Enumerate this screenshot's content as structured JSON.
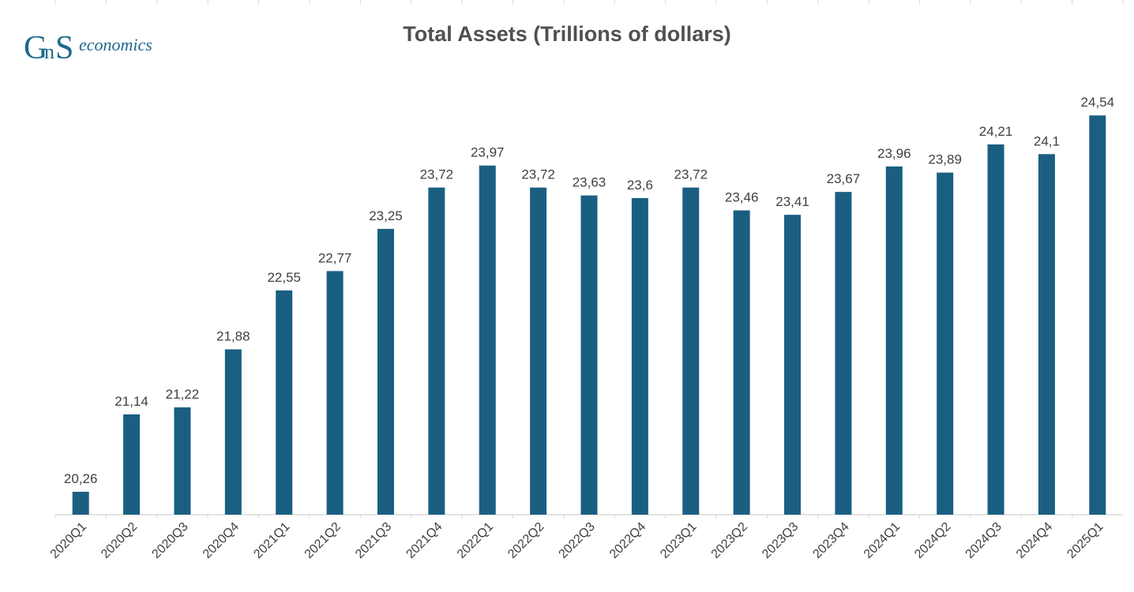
{
  "logo": {
    "text": "economics",
    "color": "#1c6a8c"
  },
  "chart_data": {
    "type": "bar",
    "title": "Total Assets (Trillions of dollars)",
    "xlabel": "",
    "ylabel": "",
    "categories": [
      "2020Q1",
      "2020Q2",
      "2020Q3",
      "2020Q4",
      "2021Q1",
      "2021Q2",
      "2021Q3",
      "2021Q4",
      "2022Q1",
      "2022Q2",
      "2022Q3",
      "2022Q4",
      "2023Q1",
      "2023Q2",
      "2023Q3",
      "2023Q4",
      "2024Q1",
      "2024Q2",
      "2024Q3",
      "2024Q4",
      "2025Q1"
    ],
    "values": [
      20.26,
      21.14,
      21.22,
      21.88,
      22.55,
      22.77,
      23.25,
      23.72,
      23.97,
      23.72,
      23.63,
      23.6,
      23.72,
      23.46,
      23.41,
      23.67,
      23.96,
      23.89,
      24.21,
      24.1,
      24.54
    ],
    "value_labels": [
      "20,26",
      "21,14",
      "21,22",
      "21,88",
      "22,55",
      "22,77",
      "23,25",
      "23,72",
      "23,97",
      "23,72",
      "23,63",
      "23,6",
      "23,72",
      "23,46",
      "23,41",
      "23,67",
      "23,96",
      "23,89",
      "24,21",
      "24,1",
      "24,54"
    ],
    "ylim": [
      20,
      25
    ],
    "grid": false,
    "bar_color": "#1a5f82",
    "axis_color": "#d9d9d9"
  }
}
